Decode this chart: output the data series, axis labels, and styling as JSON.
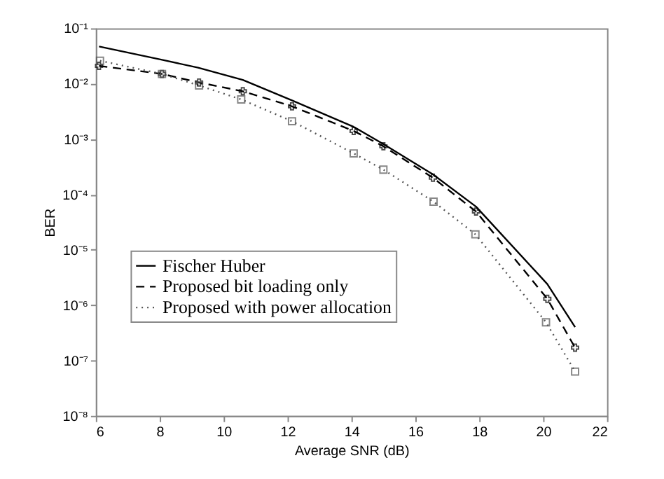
{
  "chart_data": {
    "type": "line",
    "xlabel": "Average SNR (dB)",
    "ylabel": "BER",
    "log": "y",
    "xlim": [
      6,
      22
    ],
    "xticks": [
      6,
      8,
      10,
      12,
      14,
      16,
      18,
      20,
      22
    ],
    "ylim": [
      1e-08,
      0.1
    ],
    "yticks": [
      {
        "value": 1e-08,
        "label": "10⁻⁸"
      },
      {
        "value": 1e-07,
        "label": "10⁻⁷"
      },
      {
        "value": 1e-06,
        "label": "10⁻⁶"
      },
      {
        "value": 1e-05,
        "label": "10⁻⁵"
      },
      {
        "value": 0.0001,
        "label": "10⁻⁴"
      },
      {
        "value": 0.001,
        "label": "10⁻³"
      },
      {
        "value": 0.01,
        "label": "10⁻²"
      },
      {
        "value": 0.1,
        "label": "10⁻¹"
      }
    ],
    "grid": false,
    "legend": "bottom left",
    "series": [
      {
        "name": "Fischer Huber",
        "color": "#000000",
        "line_style": "solid",
        "marker": "none",
        "x": [
          6.1,
          8.07,
          9.2,
          10.6,
          12.14,
          14.07,
          15.0,
          16.55,
          17.9,
          20.13,
          21.0
        ],
        "values": [
          0.047,
          0.027,
          0.0195,
          0.0117,
          0.005,
          0.00166,
          0.00081,
          0.00023,
          6e-05,
          2.4e-06,
          4e-07
        ]
      },
      {
        "name": "Proposed bit loading only",
        "color": "#000000",
        "line_style": "dashed",
        "marker": "cross",
        "x": [
          6.1,
          8.07,
          9.23,
          10.6,
          12.14,
          14.07,
          15.0,
          16.55,
          17.9,
          20.13,
          21.0
        ],
        "values": [
          0.021,
          0.015,
          0.0105,
          0.0073,
          0.0039,
          0.0014,
          0.00074,
          0.0002,
          4.9e-05,
          1.3e-06,
          1.7e-07
        ]
      },
      {
        "name": "Proposed with power allocation",
        "color": "#555555",
        "line_style": "dotted",
        "marker": "square",
        "x": [
          6.13,
          8.07,
          9.23,
          10.55,
          12.14,
          14.07,
          15.0,
          16.57,
          17.88,
          20.09,
          21.0
        ],
        "values": [
          0.026,
          0.015,
          0.0093,
          0.0052,
          0.0021,
          0.00055,
          0.00028,
          7.4e-05,
          1.9e-05,
          4.9e-07,
          6.3e-08
        ]
      }
    ]
  }
}
